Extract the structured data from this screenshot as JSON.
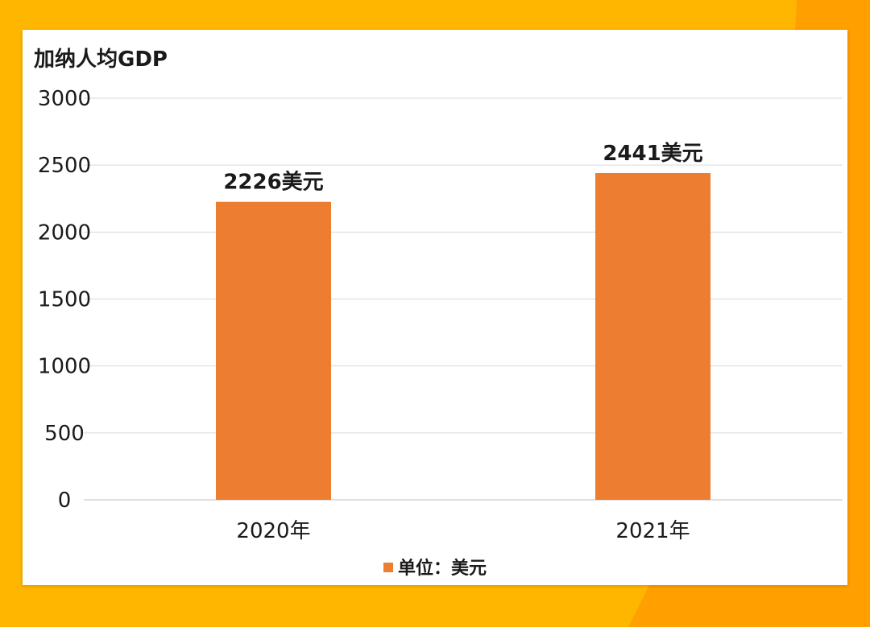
{
  "chart_data": {
    "type": "bar",
    "title": "加纳人均GDP",
    "categories": [
      "2020年",
      "2021年"
    ],
    "values": [
      2226,
      2441
    ],
    "data_labels": [
      "2226美元",
      "2441美元"
    ],
    "legend": "单位：美元",
    "ylim": [
      0,
      3000
    ],
    "yticks": [
      0,
      500,
      1000,
      1500,
      2000,
      2500,
      3000
    ],
    "grid": true,
    "legend_position": "bottom",
    "bar_color": "#ed7d31"
  }
}
